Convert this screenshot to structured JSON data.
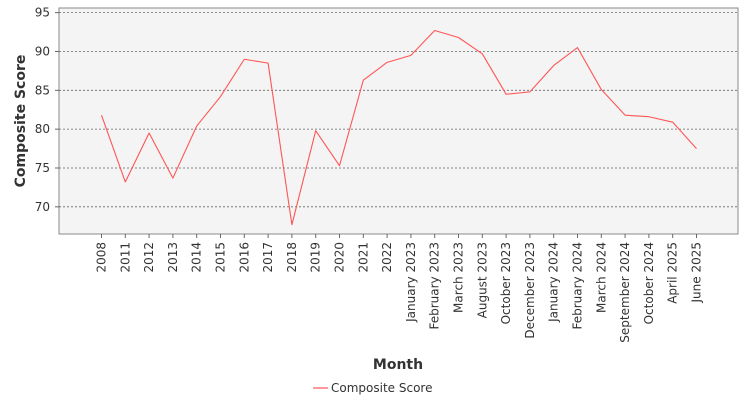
{
  "chart_data": {
    "type": "line",
    "title": "",
    "xlabel": "Month",
    "ylabel": "Composite Score",
    "ylim": [
      66.5,
      95.6
    ],
    "yticks": [
      70,
      75,
      80,
      85,
      90,
      95
    ],
    "grid": true,
    "legend_position": "bottom-center",
    "categories": [
      "2008",
      "2011",
      "2012",
      "2013",
      "2014",
      "2015",
      "2016",
      "2017",
      "2018",
      "2019",
      "2020",
      "2021",
      "2022",
      "January 2023",
      "February 2023",
      "March 2023",
      "August 2023",
      "October 2023",
      "December 2023",
      "January 2024",
      "February 2024",
      "March 2024",
      "September 2024",
      "October 2024",
      "April 2025",
      "June 2025"
    ],
    "series": [
      {
        "name": "Composite Score",
        "color": "#ff5555",
        "values": [
          81.8,
          73.2,
          79.5,
          73.7,
          80.4,
          84.2,
          89.0,
          88.5,
          67.7,
          79.8,
          75.3,
          86.3,
          88.6,
          89.5,
          92.7,
          91.8,
          89.7,
          84.5,
          84.8,
          88.2,
          90.5,
          85.1,
          81.8,
          81.6,
          80.9,
          77.5
        ]
      }
    ]
  }
}
